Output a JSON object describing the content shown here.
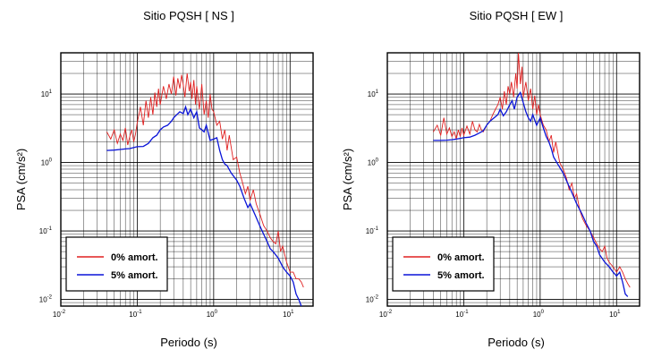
{
  "colors": {
    "undamped": "#e02020",
    "damped": "#0a14d8",
    "grid": "#000000"
  },
  "legend_labels": [
    "0% amort.",
    "5% amort."
  ],
  "chart_data": [
    {
      "type": "line",
      "title": "Sitio PQSH [ NS ]",
      "xlabel": "Periodo (s)",
      "ylabel": "PSA (cm/s²)",
      "xscale": "log",
      "yscale": "log",
      "xlim": [
        0.01,
        20
      ],
      "ylim": [
        0.008,
        40
      ],
      "grid": true,
      "legend_position": "bottom-left",
      "x_tick_labels": [
        "10-2",
        "10-1",
        "100",
        "101"
      ],
      "y_tick_labels": [
        "10-2",
        "10-1",
        "100",
        "101"
      ],
      "series": [
        {
          "name": "0% amort.",
          "x": [
            0.04,
            0.045,
            0.05,
            0.055,
            0.06,
            0.065,
            0.07,
            0.075,
            0.08,
            0.085,
            0.09,
            0.095,
            0.1,
            0.11,
            0.12,
            0.13,
            0.14,
            0.15,
            0.16,
            0.17,
            0.18,
            0.19,
            0.2,
            0.22,
            0.24,
            0.26,
            0.28,
            0.3,
            0.32,
            0.34,
            0.36,
            0.38,
            0.4,
            0.42,
            0.45,
            0.48,
            0.5,
            0.52,
            0.55,
            0.58,
            0.6,
            0.65,
            0.7,
            0.75,
            0.8,
            0.85,
            0.9,
            0.95,
            1.0,
            1.1,
            1.2,
            1.3,
            1.4,
            1.5,
            1.6,
            1.8,
            2.0,
            2.2,
            2.4,
            2.6,
            2.8,
            3.0,
            3.3,
            3.6,
            4.0,
            4.5,
            5.0,
            5.5,
            6.0,
            6.5,
            7.0,
            7.5,
            8.0,
            9.0,
            10,
            11,
            12,
            13,
            14,
            15
          ],
          "y": [
            2.8,
            2.2,
            3.0,
            1.9,
            2.6,
            2.1,
            3.2,
            1.8,
            2.4,
            3.0,
            2.0,
            2.6,
            3.8,
            6.5,
            3.5,
            8.0,
            4.5,
            9.0,
            5.0,
            10.5,
            6.5,
            12.0,
            7.0,
            13.0,
            8.5,
            14.0,
            10.0,
            18.0,
            9.5,
            17.0,
            12.0,
            19.0,
            13.5,
            9.0,
            20.0,
            11.0,
            15.0,
            8.5,
            16.0,
            7.0,
            13.0,
            6.0,
            14.0,
            5.0,
            8.0,
            4.5,
            10.0,
            6.0,
            5.5,
            3.5,
            4.0,
            2.2,
            3.0,
            1.5,
            2.5,
            1.1,
            1.2,
            0.7,
            0.5,
            0.35,
            0.45,
            0.28,
            0.4,
            0.25,
            0.18,
            0.12,
            0.1,
            0.08,
            0.07,
            0.065,
            0.1,
            0.05,
            0.06,
            0.035,
            0.025,
            0.025,
            0.02,
            0.02,
            0.018,
            0.015
          ]
        },
        {
          "name": "5% amort.",
          "x": [
            0.04,
            0.05,
            0.06,
            0.07,
            0.08,
            0.09,
            0.1,
            0.12,
            0.14,
            0.16,
            0.18,
            0.2,
            0.22,
            0.25,
            0.28,
            0.3,
            0.33,
            0.36,
            0.4,
            0.43,
            0.46,
            0.5,
            0.55,
            0.6,
            0.65,
            0.7,
            0.75,
            0.8,
            0.9,
            1.0,
            1.1,
            1.2,
            1.3,
            1.4,
            1.5,
            1.7,
            2.0,
            2.2,
            2.5,
            2.8,
            3.0,
            3.5,
            4.0,
            4.5,
            5.0,
            5.5,
            6.0,
            7.0,
            8.0,
            9.0,
            10,
            11,
            12,
            13,
            14
          ],
          "y": [
            1.5,
            1.52,
            1.55,
            1.58,
            1.6,
            1.65,
            1.7,
            1.72,
            1.9,
            2.3,
            2.5,
            3.0,
            3.3,
            3.5,
            4.0,
            4.5,
            5.0,
            5.5,
            5.2,
            6.5,
            5.0,
            6.0,
            4.5,
            5.5,
            3.2,
            3.0,
            2.8,
            3.5,
            2.1,
            2.2,
            2.3,
            1.5,
            1.1,
            0.95,
            0.9,
            0.7,
            0.55,
            0.45,
            0.3,
            0.22,
            0.25,
            0.17,
            0.12,
            0.09,
            0.07,
            0.055,
            0.05,
            0.04,
            0.03,
            0.025,
            0.022,
            0.018,
            0.012,
            0.01,
            0.008
          ]
        }
      ]
    },
    {
      "type": "line",
      "title": "Sitio PQSH [ EW ]",
      "xlabel": "Periodo (s)",
      "ylabel": "PSA (cm/s²)",
      "xscale": "log",
      "yscale": "log",
      "xlim": [
        0.01,
        20
      ],
      "ylim": [
        0.008,
        40
      ],
      "grid": true,
      "legend_position": "bottom-left",
      "x_tick_labels": [
        "10-2",
        "10-1",
        "100",
        "101"
      ],
      "y_tick_labels": [
        "10-2",
        "10-1",
        "100",
        "101"
      ],
      "series": [
        {
          "name": "0% amort.",
          "x": [
            0.04,
            0.045,
            0.05,
            0.055,
            0.06,
            0.065,
            0.07,
            0.075,
            0.08,
            0.085,
            0.09,
            0.095,
            0.1,
            0.11,
            0.12,
            0.13,
            0.14,
            0.15,
            0.16,
            0.17,
            0.18,
            0.2,
            0.22,
            0.24,
            0.26,
            0.28,
            0.3,
            0.32,
            0.34,
            0.36,
            0.38,
            0.4,
            0.42,
            0.45,
            0.48,
            0.5,
            0.52,
            0.55,
            0.58,
            0.6,
            0.65,
            0.7,
            0.75,
            0.8,
            0.85,
            0.9,
            0.95,
            1.0,
            1.1,
            1.2,
            1.3,
            1.4,
            1.5,
            1.6,
            1.8,
            2.0,
            2.2,
            2.4,
            2.6,
            2.8,
            3.0,
            3.3,
            3.6,
            4.0,
            4.5,
            5.0,
            5.5,
            6.0,
            6.5,
            7.0,
            7.5,
            8.0,
            9.0,
            10,
            11,
            12,
            13,
            14,
            15
          ],
          "y": [
            2.8,
            3.5,
            2.5,
            4.5,
            2.6,
            3.2,
            2.4,
            2.8,
            2.2,
            3.0,
            2.4,
            3.2,
            2.5,
            3.4,
            2.6,
            4.0,
            3.0,
            2.8,
            3.6,
            3.0,
            2.8,
            3.5,
            4.0,
            5.0,
            6.0,
            7.0,
            9.0,
            6.0,
            11.0,
            7.0,
            13.0,
            10.0,
            15.0,
            9.0,
            20.0,
            12.0,
            40.0,
            14.0,
            25.0,
            9.0,
            15.0,
            8.0,
            12.0,
            6.0,
            9.5,
            5.0,
            7.0,
            5.0,
            3.5,
            3.0,
            2.0,
            2.5,
            1.4,
            2.0,
            1.0,
            0.8,
            0.6,
            0.4,
            0.5,
            0.3,
            0.35,
            0.2,
            0.15,
            0.12,
            0.1,
            0.08,
            0.065,
            0.055,
            0.05,
            0.06,
            0.04,
            0.035,
            0.03,
            0.025,
            0.03,
            0.025,
            0.02,
            0.017,
            0.015
          ]
        },
        {
          "name": "5% amort.",
          "x": [
            0.04,
            0.05,
            0.06,
            0.07,
            0.08,
            0.09,
            0.1,
            0.12,
            0.14,
            0.16,
            0.18,
            0.2,
            0.22,
            0.25,
            0.28,
            0.3,
            0.33,
            0.36,
            0.4,
            0.43,
            0.46,
            0.5,
            0.55,
            0.6,
            0.65,
            0.7,
            0.75,
            0.8,
            0.9,
            1.0,
            1.1,
            1.2,
            1.3,
            1.4,
            1.5,
            1.7,
            2.0,
            2.2,
            2.5,
            2.8,
            3.0,
            3.5,
            4.0,
            4.5,
            5.0,
            5.5,
            6.0,
            7.0,
            8.0,
            9.0,
            10,
            11,
            12,
            13,
            14
          ],
          "y": [
            2.1,
            2.1,
            2.12,
            2.15,
            2.2,
            2.25,
            2.3,
            2.35,
            2.5,
            2.7,
            2.9,
            3.5,
            4.0,
            4.5,
            5.0,
            6.0,
            4.8,
            5.5,
            7.0,
            8.0,
            6.0,
            9.0,
            10.5,
            7.5,
            5.5,
            4.5,
            4.0,
            5.0,
            3.5,
            4.5,
            3.2,
            2.4,
            2.0,
            1.6,
            1.2,
            0.95,
            0.7,
            0.55,
            0.4,
            0.3,
            0.25,
            0.18,
            0.13,
            0.1,
            0.07,
            0.06,
            0.045,
            0.035,
            0.03,
            0.025,
            0.022,
            0.025,
            0.018,
            0.012,
            0.011
          ]
        }
      ]
    }
  ]
}
